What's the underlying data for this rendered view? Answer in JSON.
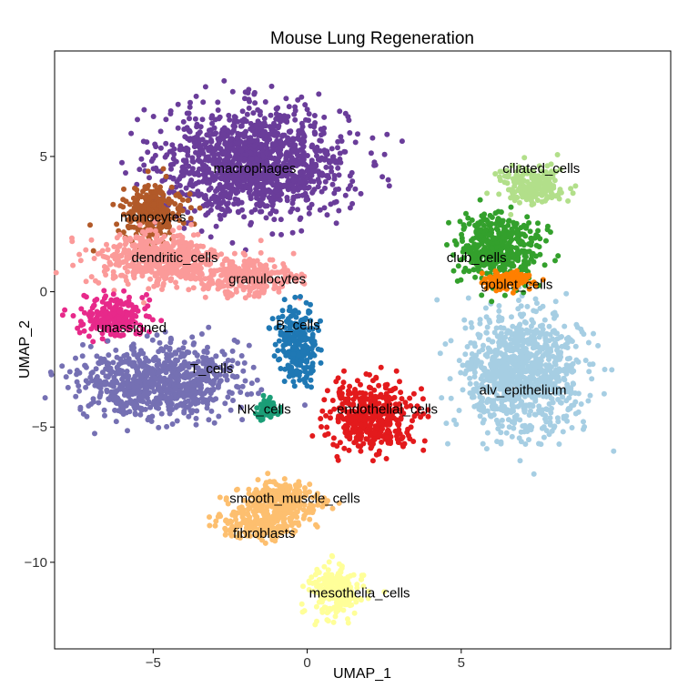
{
  "chart_data": {
    "type": "scatter",
    "title": "Mouse Lung Regeneration",
    "xlabel": "UMAP_1",
    "ylabel": "UMAP_2",
    "xlim": [
      -8.2,
      11.8
    ],
    "ylim": [
      -13.2,
      8.9
    ],
    "xticks": [
      -5,
      0,
      5
    ],
    "yticks": [
      5,
      0,
      -5,
      -10
    ],
    "grid": false,
    "legend": "none",
    "clusters": [
      {
        "name": "macrophages",
        "color": "#6A3D9A",
        "center": [
          -1.7,
          4.8
        ],
        "spread": [
          2.7,
          1.8
        ],
        "label_at": [
          -1.7,
          4.4
        ]
      },
      {
        "name": "monocytes",
        "color": "#B15928",
        "center": [
          -5.0,
          2.9
        ],
        "spread": [
          0.9,
          0.9
        ],
        "label_at": [
          -5.0,
          2.6
        ]
      },
      {
        "name": "dendritic_cells",
        "color": "#FB9A99",
        "center": [
          -4.8,
          1.2
        ],
        "spread": [
          1.9,
          0.9
        ],
        "label_at": [
          -4.3,
          1.1
        ]
      },
      {
        "name": "granulocytes",
        "color": "#FB9A99",
        "center": [
          -1.9,
          0.5
        ],
        "spread": [
          1.4,
          0.6
        ],
        "label_at": [
          -1.3,
          0.3
        ]
      },
      {
        "name": "unassigned",
        "color": "#E7298A",
        "center": [
          -6.3,
          -0.9
        ],
        "spread": [
          0.9,
          0.7
        ],
        "label_at": [
          -5.7,
          -1.5
        ]
      },
      {
        "name": "T_cells",
        "color": "#7570B3",
        "center": [
          -4.8,
          -3.3
        ],
        "spread": [
          2.3,
          1.2
        ],
        "label_at": [
          -3.1,
          -3.0
        ]
      },
      {
        "name": "B_cells",
        "color": "#1F78B4",
        "center": [
          -0.3,
          -1.9
        ],
        "spread": [
          0.6,
          1.2
        ],
        "label_at": [
          -0.3,
          -1.4
        ]
      },
      {
        "name": "NK_cells",
        "color": "#1B9E77",
        "center": [
          -1.3,
          -4.3
        ],
        "spread": [
          0.3,
          0.3
        ],
        "label_at": [
          -1.4,
          -4.5
        ]
      },
      {
        "name": "endothelial_cells",
        "color": "#E31A1C",
        "center": [
          2.1,
          -4.6
        ],
        "spread": [
          1.3,
          1.1
        ],
        "label_at": [
          2.6,
          -4.5
        ]
      },
      {
        "name": "alv_epithelium",
        "color": "#A6CEE3",
        "center": [
          7.0,
          -3.0
        ],
        "spread": [
          1.7,
          2.0
        ],
        "label_at": [
          7.0,
          -3.8
        ]
      },
      {
        "name": "club_cells",
        "color": "#33A02C",
        "center": [
          6.2,
          1.6
        ],
        "spread": [
          1.2,
          1.2
        ],
        "label_at": [
          5.5,
          1.1
        ]
      },
      {
        "name": "goblet_cells",
        "color": "#FF7F00",
        "center": [
          6.4,
          0.4
        ],
        "spread": [
          0.8,
          0.3
        ],
        "label_at": [
          6.8,
          0.1
        ]
      },
      {
        "name": "ciliated_cells",
        "color": "#B2DF8A",
        "center": [
          7.3,
          3.9
        ],
        "spread": [
          1.0,
          0.6
        ],
        "label_at": [
          7.6,
          4.4
        ]
      },
      {
        "name": "smooth_muscle_cells",
        "color": "#FDBF6F",
        "center": [
          -0.9,
          -7.7
        ],
        "spread": [
          1.2,
          0.6
        ],
        "label_at": [
          -0.4,
          -7.8
        ]
      },
      {
        "name": "fibroblasts",
        "color": "#FDBF6F",
        "center": [
          -1.5,
          -8.6
        ],
        "spread": [
          1.2,
          0.5
        ],
        "label_at": [
          -1.4,
          -9.1
        ]
      },
      {
        "name": "mesothelia_cells",
        "color": "#FFFF99",
        "center": [
          0.9,
          -11.1
        ],
        "spread": [
          0.8,
          0.8
        ],
        "label_at": [
          1.7,
          -11.3
        ]
      }
    ]
  }
}
